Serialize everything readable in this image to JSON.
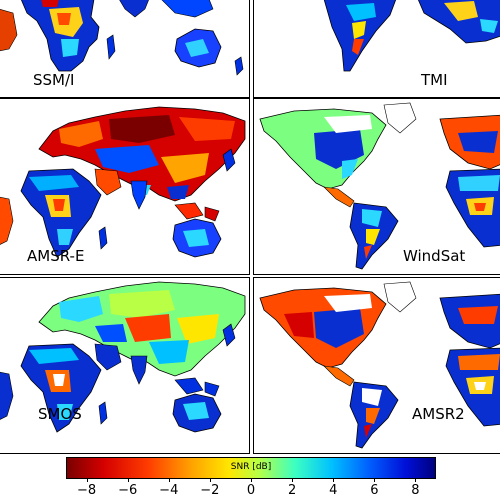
{
  "panels": [
    {
      "label": "SSM/I",
      "region": "eastern-hemisphere"
    },
    {
      "label": "TMI",
      "region": "western-hemisphere"
    },
    {
      "label": "AMSR-E",
      "region": "eastern-hemisphere"
    },
    {
      "label": "WindSat",
      "region": "western-hemisphere"
    },
    {
      "label": "SMOS",
      "region": "eastern-hemisphere"
    },
    {
      "label": "AMSR2",
      "region": "western-hemisphere"
    }
  ],
  "colorbar": {
    "title": "SNR [dB]",
    "ticks": [
      "−8",
      "−6",
      "−4",
      "−2",
      "0",
      "2",
      "4",
      "6",
      "8"
    ],
    "range": [
      -9,
      9
    ],
    "colormap": "jet-reversed",
    "colors": {
      "low": "#7a0000",
      "mid": "#b8ff45",
      "high": "#000080"
    }
  },
  "map_colors": {
    "ocean": "#ffffff",
    "coast": "#000000",
    "no_data": "#ffffff"
  }
}
